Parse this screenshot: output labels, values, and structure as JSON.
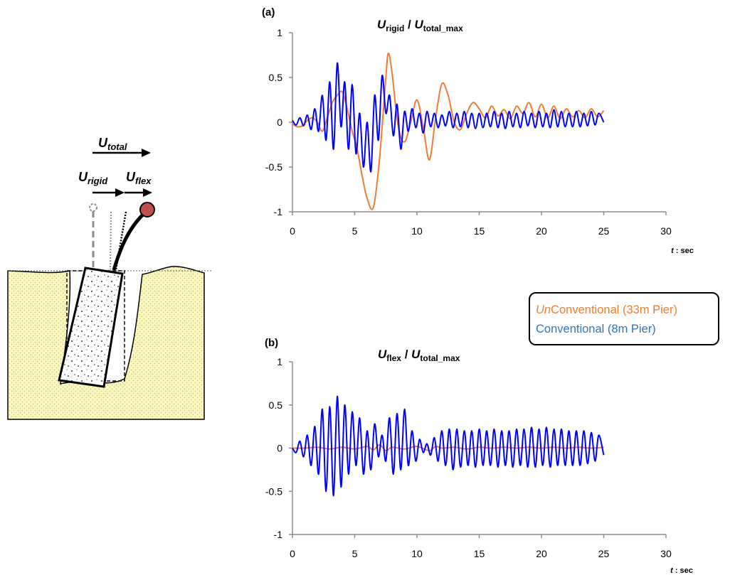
{
  "chart_data": [
    {
      "id": "a",
      "type": "line",
      "panel_label": "(a)",
      "title": {
        "main": "U",
        "sub1": "rigid",
        "sep": " / ",
        "main2": "U",
        "sub2": "total_max"
      },
      "xlabel": "t : sec",
      "xlim": [
        0,
        30
      ],
      "ylim": [
        -1,
        1
      ],
      "xticks": [
        0,
        5,
        10,
        15,
        20,
        25,
        30
      ],
      "yticks": [
        1,
        0.5,
        0,
        -0.5,
        -1
      ],
      "ytick_labels": [
        "1",
        "0.5",
        "0",
        "-0.5",
        "-1"
      ],
      "grid": false,
      "series": [
        {
          "name": "UnConventional (33m Pier)",
          "color": "#ed7d31",
          "x": [
            0,
            0.4,
            0.8,
            1.2,
            1.6,
            2.0,
            2.4,
            2.8,
            3.2,
            3.6,
            4.0,
            4.4,
            4.8,
            5.2,
            5.6,
            6.0,
            6.5,
            7.0,
            7.5,
            7.7,
            8.0,
            8.5,
            9.0,
            9.5,
            10.0,
            10.5,
            11.0,
            11.5,
            12.0,
            12.5,
            13.0,
            13.5,
            14.0,
            14.5,
            15.0,
            15.5,
            16.0,
            16.5,
            17.0,
            17.5,
            18.0,
            18.5,
            19.0,
            19.5,
            20.0,
            20.5,
            21.0,
            21.5,
            22.0,
            22.5,
            23.0,
            23.5,
            24.0,
            24.5,
            25.0
          ],
          "y": [
            -0.02,
            -0.05,
            -0.04,
            0.02,
            0.05,
            0.0,
            -0.1,
            0.05,
            0.22,
            0.3,
            0.34,
            0.15,
            -0.1,
            -0.3,
            -0.6,
            -0.85,
            -0.95,
            -0.4,
            0.5,
            0.77,
            0.55,
            -0.05,
            -0.22,
            0.0,
            0.25,
            -0.05,
            -0.42,
            0.05,
            0.43,
            0.3,
            0.0,
            -0.08,
            0.1,
            0.22,
            0.15,
            0.05,
            0.18,
            0.07,
            0.14,
            0.04,
            0.18,
            0.1,
            0.22,
            0.06,
            0.2,
            0.05,
            0.18,
            0.04,
            0.15,
            0.06,
            0.13,
            0.05,
            0.15,
            0.06,
            0.13
          ]
        },
        {
          "name": "Conventional (8m Pier)",
          "color": "#0000ff",
          "x": [
            0,
            0.3,
            0.6,
            0.9,
            1.2,
            1.5,
            1.8,
            2.1,
            2.4,
            2.7,
            3.0,
            3.3,
            3.6,
            3.9,
            4.2,
            4.5,
            4.8,
            5.1,
            5.4,
            5.7,
            6.0,
            6.3,
            6.6,
            6.9,
            7.2,
            7.5,
            7.8,
            8.1,
            8.4,
            8.7,
            9.0,
            9.3,
            9.6,
            9.9,
            10.2,
            10.5,
            10.8,
            11.1,
            11.4,
            11.7,
            12.0,
            12.3,
            12.6,
            12.9,
            13.2,
            13.5,
            13.8,
            14.1,
            14.4,
            14.7,
            15.0,
            15.3,
            15.6,
            15.9,
            16.2,
            16.5,
            16.8,
            17.1,
            17.4,
            17.7,
            18.0,
            18.3,
            18.6,
            18.9,
            19.2,
            19.5,
            19.8,
            20.1,
            20.4,
            20.7,
            21.0,
            21.3,
            21.6,
            21.9,
            22.2,
            22.5,
            22.8,
            23.1,
            23.4,
            23.7,
            24.0,
            24.3,
            24.6,
            25.0
          ],
          "y": [
            0.02,
            -0.03,
            0.05,
            -0.04,
            0.08,
            -0.08,
            0.15,
            -0.1,
            0.3,
            -0.2,
            0.45,
            -0.3,
            0.66,
            -0.05,
            0.45,
            -0.3,
            0.42,
            -0.35,
            0.1,
            -0.5,
            0.0,
            -0.55,
            0.3,
            -0.2,
            0.52,
            0.1,
            0.3,
            -0.15,
            0.2,
            -0.3,
            0.12,
            -0.1,
            0.15,
            -0.06,
            0.1,
            -0.12,
            0.12,
            -0.05,
            0.1,
            -0.06,
            0.08,
            -0.04,
            0.12,
            -0.06,
            0.1,
            -0.05,
            0.12,
            -0.06,
            0.1,
            -0.07,
            0.1,
            -0.06,
            0.1,
            -0.05,
            0.12,
            -0.06,
            0.1,
            -0.07,
            0.12,
            -0.05,
            0.1,
            -0.06,
            0.12,
            -0.04,
            0.1,
            -0.06,
            0.12,
            -0.05,
            0.1,
            -0.06,
            0.14,
            -0.05,
            0.12,
            -0.05,
            0.1,
            -0.05,
            0.12,
            -0.05,
            0.1,
            -0.04,
            0.12,
            -0.03,
            0.1,
            0.0
          ]
        }
      ]
    },
    {
      "id": "b",
      "type": "line",
      "panel_label": "(b)",
      "title": {
        "main": "U",
        "sub1": "flex",
        "sep": " / ",
        "main2": "U",
        "sub2": "total_max"
      },
      "xlabel": "t : sec",
      "xlim": [
        0,
        30
      ],
      "ylim": [
        -1,
        1
      ],
      "xticks": [
        0,
        5,
        10,
        15,
        20,
        25,
        30
      ],
      "yticks": [
        1,
        0.5,
        0,
        -0.5,
        -1
      ],
      "ytick_labels": [
        "1",
        "0.5",
        "0",
        "-0.5",
        "-1"
      ],
      "grid": false,
      "series": [
        {
          "name": "UnConventional (33m Pier)",
          "color": "#ed7d31",
          "x": [
            0,
            1,
            2,
            3,
            4,
            5,
            6,
            6.5,
            7,
            7.5,
            8,
            9,
            10,
            11,
            11.5,
            12,
            13,
            14,
            15,
            16,
            17,
            18,
            19,
            20,
            21,
            22,
            23,
            24,
            25
          ],
          "y": [
            0,
            0,
            0.01,
            -0.01,
            0.01,
            -0.01,
            0.02,
            -0.02,
            0.04,
            -0.03,
            0.01,
            -0.01,
            0.02,
            -0.03,
            0.02,
            0.0,
            0.01,
            -0.01,
            0.01,
            0.0,
            0.01,
            0.0,
            0.01,
            0.0,
            0.01,
            0.0,
            0.01,
            0.0,
            0.01
          ]
        },
        {
          "name": "Conventional (8m Pier)",
          "color": "#0000ff",
          "x": [
            0,
            0.3,
            0.6,
            0.9,
            1.2,
            1.5,
            1.8,
            2.1,
            2.4,
            2.7,
            3.0,
            3.3,
            3.6,
            3.9,
            4.2,
            4.5,
            4.8,
            5.1,
            5.4,
            5.7,
            6.0,
            6.3,
            6.6,
            6.9,
            7.2,
            7.5,
            7.8,
            8.1,
            8.4,
            8.7,
            9.0,
            9.3,
            9.6,
            9.9,
            10.2,
            10.5,
            10.8,
            11.1,
            11.4,
            11.7,
            12.0,
            12.3,
            12.6,
            12.9,
            13.2,
            13.5,
            13.8,
            14.1,
            14.4,
            14.7,
            15.0,
            15.3,
            15.6,
            15.9,
            16.2,
            16.5,
            16.8,
            17.1,
            17.4,
            17.7,
            18.0,
            18.3,
            18.6,
            18.9,
            19.2,
            19.5,
            19.8,
            20.1,
            20.4,
            20.7,
            21.0,
            21.3,
            21.6,
            21.9,
            22.2,
            22.5,
            22.8,
            23.1,
            23.4,
            23.7,
            24.0,
            24.3,
            24.6,
            25.0
          ],
          "y": [
            0.0,
            -0.05,
            0.08,
            -0.1,
            0.15,
            -0.2,
            0.25,
            -0.3,
            0.45,
            -0.5,
            0.48,
            -0.55,
            0.6,
            -0.45,
            0.5,
            -0.3,
            0.42,
            -0.2,
            0.35,
            -0.3,
            0.2,
            -0.25,
            0.28,
            -0.1,
            0.15,
            -0.15,
            0.35,
            -0.3,
            0.4,
            -0.25,
            0.45,
            -0.2,
            0.2,
            -0.15,
            0.1,
            -0.05,
            0.05,
            -0.08,
            0.12,
            -0.15,
            0.2,
            -0.2,
            0.22,
            -0.25,
            0.22,
            -0.22,
            0.2,
            -0.2,
            0.2,
            -0.22,
            0.22,
            -0.2,
            0.2,
            -0.2,
            0.22,
            -0.22,
            0.2,
            -0.2,
            0.2,
            -0.22,
            0.22,
            -0.2,
            0.22,
            -0.22,
            0.24,
            -0.22,
            0.22,
            -0.2,
            0.24,
            -0.22,
            0.22,
            -0.2,
            0.22,
            -0.2,
            0.2,
            -0.2,
            0.2,
            -0.2,
            0.2,
            -0.18,
            0.18,
            -0.15,
            0.15,
            -0.08
          ]
        }
      ]
    }
  ],
  "legend": {
    "unconventional_italic": "Un",
    "unconventional_rest": "Conventional (33m Pier)",
    "conventional": "Conventional (8m Pier)"
  },
  "diagram": {
    "u_total": {
      "main": "U",
      "sub": "total"
    },
    "u_rigid": {
      "main": "U",
      "sub": "rigid"
    },
    "u_flex": {
      "main": "U",
      "sub": "flex"
    },
    "colors": {
      "soil": "#fbf5c0",
      "ball": "#c0504d"
    }
  }
}
